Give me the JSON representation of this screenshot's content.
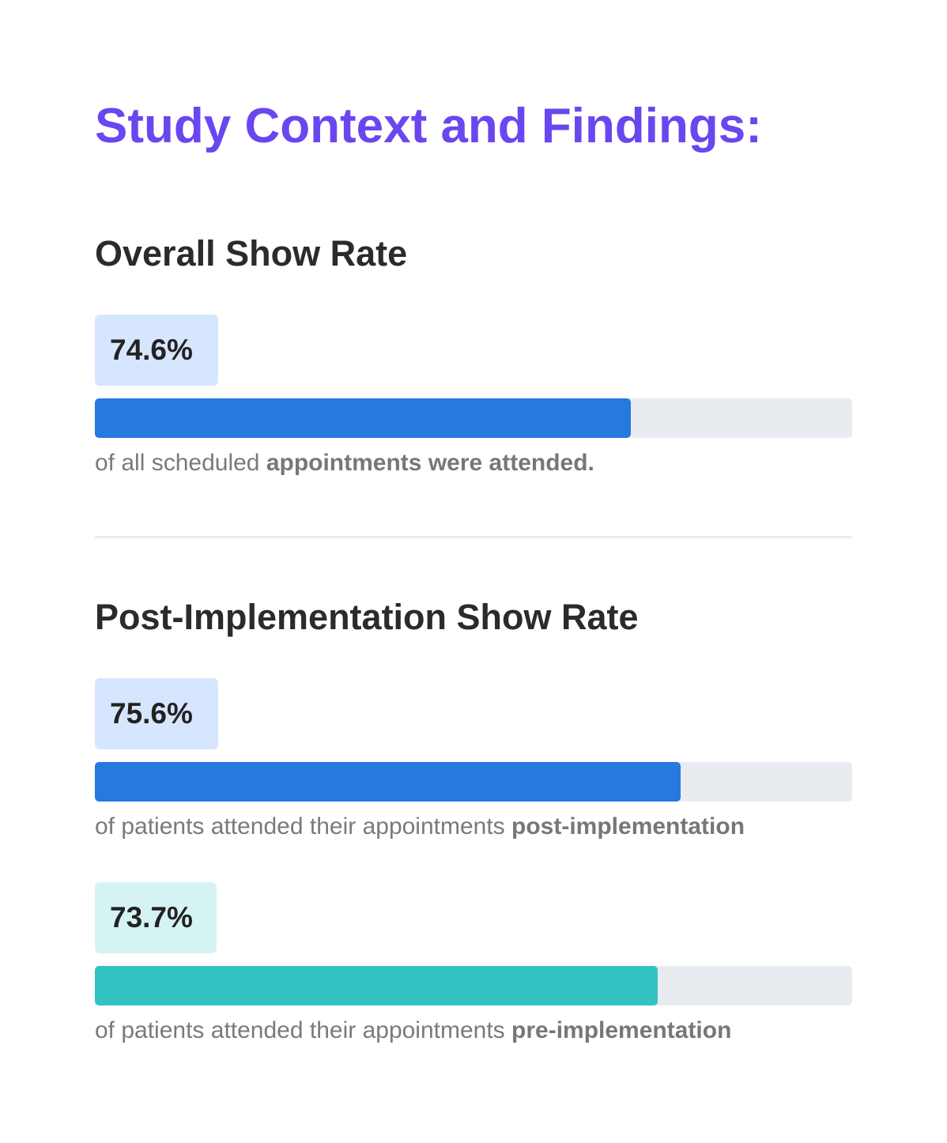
{
  "title": "Study Context and Findings:",
  "sections": [
    {
      "heading": "Overall Show Rate",
      "metrics": [
        {
          "value_label": "74.6%",
          "value": 74.6,
          "bar_fill_percent": 70.8,
          "color": "#2679de",
          "badge_color": "#d7e6ff",
          "caption_regular": "of all scheduled ",
          "caption_bold": "appointments were attended."
        }
      ]
    },
    {
      "heading": "Post-Implementation Show Rate",
      "metrics": [
        {
          "value_label": "75.6%",
          "value": 75.6,
          "bar_fill_percent": 77.3,
          "color": "#2679de",
          "badge_color": "#d7e6ff",
          "caption_regular": "of patients attended their appointments ",
          "caption_bold": "post-implementation"
        },
        {
          "value_label": "73.7%",
          "value": 73.7,
          "bar_fill_percent": 74.3,
          "color": "#32c3c2",
          "badge_color": "#d6f3f3",
          "caption_regular": "of patients attended their appointments ",
          "caption_bold": "pre-implementation"
        }
      ]
    }
  ]
}
